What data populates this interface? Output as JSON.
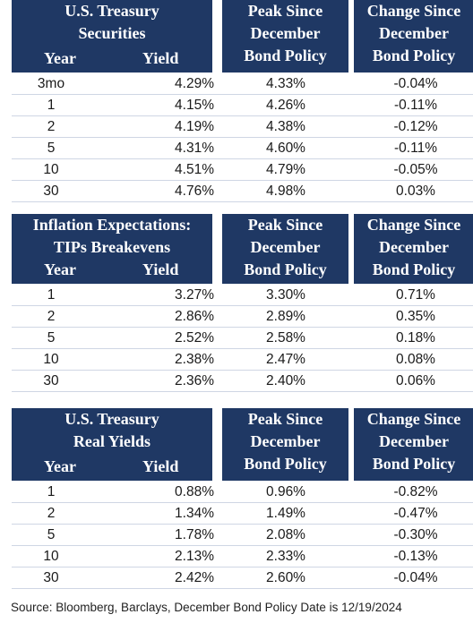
{
  "sections": [
    {
      "header_title": [
        "U.S. Treasury",
        "Securities"
      ],
      "year_label": "Year",
      "yield_label": "Yield",
      "peak_header": [
        "Peak Since",
        "December",
        "Bond Policy"
      ],
      "change_header": [
        "Change Since",
        "December",
        "Bond Policy"
      ],
      "rows": [
        {
          "year": "3mo",
          "yield": "4.29%",
          "peak": "4.33%",
          "change": "-0.04%"
        },
        {
          "year": "1",
          "yield": "4.15%",
          "peak": "4.26%",
          "change": "-0.11%"
        },
        {
          "year": "2",
          "yield": "4.19%",
          "peak": "4.38%",
          "change": "-0.12%"
        },
        {
          "year": "5",
          "yield": "4.31%",
          "peak": "4.60%",
          "change": "-0.11%"
        },
        {
          "year": "10",
          "yield": "4.51%",
          "peak": "4.79%",
          "change": "-0.05%"
        },
        {
          "year": "30",
          "yield": "4.76%",
          "peak": "4.98%",
          "change": "0.03%"
        }
      ]
    },
    {
      "header_title": [
        "Inflation Expectations:",
        "TIPs Breakevens"
      ],
      "year_label": "Year",
      "yield_label": "Yield",
      "peak_header": [
        "Peak Since",
        "December",
        "Bond Policy"
      ],
      "change_header": [
        "Change Since",
        "December",
        "Bond Policy"
      ],
      "rows": [
        {
          "year": "1",
          "yield": "3.27%",
          "peak": "3.30%",
          "change": "0.71%"
        },
        {
          "year": "2",
          "yield": "2.86%",
          "peak": "2.89%",
          "change": "0.35%"
        },
        {
          "year": "5",
          "yield": "2.52%",
          "peak": "2.58%",
          "change": "0.18%"
        },
        {
          "year": "10",
          "yield": "2.38%",
          "peak": "2.47%",
          "change": "0.08%"
        },
        {
          "year": "30",
          "yield": "2.36%",
          "peak": "2.40%",
          "change": "0.06%"
        }
      ]
    },
    {
      "header_title": [
        "U.S. Treasury",
        "Real Yields"
      ],
      "year_label": "Year",
      "yield_label": "Yield",
      "peak_header": [
        "Peak Since",
        "December",
        "Bond Policy"
      ],
      "change_header": [
        "Change Since",
        "December",
        "Bond Policy"
      ],
      "rows": [
        {
          "year": "1",
          "yield": "0.88%",
          "peak": "0.96%",
          "change": "-0.82%"
        },
        {
          "year": "2",
          "yield": "1.34%",
          "peak": "1.49%",
          "change": "-0.47%"
        },
        {
          "year": "5",
          "yield": "1.78%",
          "peak": "2.08%",
          "change": "-0.30%"
        },
        {
          "year": "10",
          "yield": "2.13%",
          "peak": "2.33%",
          "change": "-0.13%"
        },
        {
          "year": "30",
          "yield": "2.42%",
          "peak": "2.60%",
          "change": "-0.04%"
        }
      ]
    }
  ],
  "footer": "Source: Bloomberg, Barclays, December Bond Policy Date is 12/19/2024",
  "colors": {
    "header_bg": "#1f3864",
    "header_text": "#ffffff",
    "row_rule": "#cfd6e4"
  }
}
